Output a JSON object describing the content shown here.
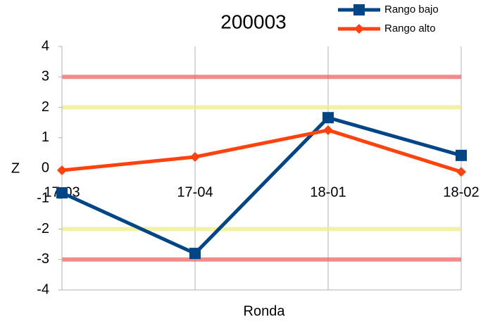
{
  "chart_data": {
    "type": "line",
    "title": "200003",
    "x_label": "Ronda",
    "y_label": "Z",
    "categories": [
      "17-03",
      "17-04",
      "18-01",
      "18-02"
    ],
    "series": [
      {
        "name": "Rango bajo",
        "color": "#004586",
        "marker": "square",
        "values": [
          -0.81,
          -2.8,
          1.66,
          0.42
        ]
      },
      {
        "name": "Rango alto",
        "color": "#ff420e",
        "marker": "diamond",
        "values": [
          -0.07,
          0.37,
          1.25,
          -0.12
        ]
      }
    ],
    "reference_lines": [
      {
        "value": 3,
        "color": "#ee6666"
      },
      {
        "value": -3,
        "color": "#ee6666"
      },
      {
        "value": 2,
        "color": "#eeee88"
      },
      {
        "value": -2,
        "color": "#eeee88"
      }
    ],
    "ylim": [
      -4,
      4
    ],
    "yticks": [
      -4,
      -3,
      -2,
      -1,
      0,
      1,
      2,
      3,
      4
    ],
    "legend": "top-right"
  }
}
